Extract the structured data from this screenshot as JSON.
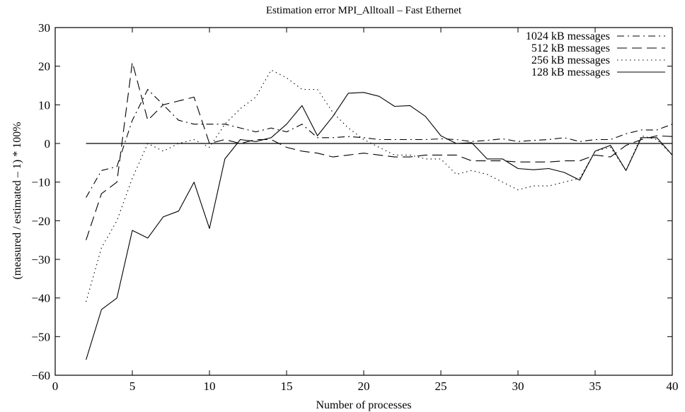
{
  "chart_data": {
    "type": "line",
    "title": "Estimation error MPI_Alltoall – Fast Ethernet",
    "xlabel": "Number of processes",
    "ylabel": "(measured / estimated – 1) * 100%",
    "xlim": [
      0,
      40
    ],
    "ylim": [
      -60,
      30
    ],
    "xticks": [
      0,
      5,
      10,
      15,
      20,
      25,
      30,
      35,
      40
    ],
    "yticks": [
      -60,
      -50,
      -40,
      -30,
      -20,
      -10,
      0,
      10,
      20,
      30
    ],
    "xtick_labels": [
      "0",
      "5",
      "10",
      "15",
      "20",
      "25",
      "30",
      "35",
      "40"
    ],
    "ytick_labels": [
      "−60",
      "−50",
      "−40",
      "−30",
      "−20",
      "−10",
      "0",
      "10",
      "20",
      "30"
    ],
    "grid": false,
    "legend_position": "top-right",
    "reference_line_y": 0,
    "series": [
      {
        "name": "1024 kB messages",
        "dash": "10,5,2,5",
        "x": [
          2,
          3,
          4,
          5,
          6,
          7,
          8,
          9,
          10,
          11,
          12,
          13,
          14,
          15,
          16,
          17,
          18,
          19,
          20,
          21,
          22,
          23,
          24,
          25,
          26,
          27,
          28,
          29,
          30,
          31,
          32,
          33,
          34,
          35,
          36,
          37,
          38,
          39,
          40
        ],
        "y": [
          -14,
          -7,
          -6,
          6,
          14,
          10,
          6,
          5,
          5,
          5,
          4,
          3,
          4,
          3,
          5,
          1.5,
          1.5,
          1.8,
          1.5,
          1,
          1,
          1,
          1,
          1.2,
          1,
          0.5,
          0.8,
          1.2,
          0.5,
          0.8,
          1,
          1.5,
          0.5,
          1,
          1,
          2.5,
          3.5,
          3.5,
          5
        ]
      },
      {
        "name": "512 kB messages",
        "dash": "14,7",
        "x": [
          2,
          3,
          4,
          5,
          6,
          7,
          8,
          9,
          10,
          11,
          12,
          13,
          14,
          15,
          16,
          17,
          18,
          19,
          20,
          21,
          22,
          23,
          24,
          25,
          26,
          27,
          28,
          29,
          30,
          31,
          32,
          33,
          34,
          35,
          36,
          37,
          38,
          39,
          40
        ],
        "y": [
          -25,
          -13,
          -10,
          21,
          6,
          10,
          11,
          12,
          0,
          1,
          0,
          1,
          1,
          -1,
          -2,
          -2.5,
          -3.5,
          -3,
          -2.5,
          -3,
          -3.5,
          -3.5,
          -3,
          -3,
          -3,
          -4.5,
          -4.5,
          -4.5,
          -4.8,
          -4.8,
          -4.8,
          -4.5,
          -4.5,
          -3,
          -3.5,
          -0.5,
          1,
          2,
          1.8
        ]
      },
      {
        "name": "256 kB messages",
        "dash": "1.5,4.5",
        "x": [
          2,
          3,
          4,
          5,
          6,
          7,
          8,
          9,
          10,
          11,
          12,
          13,
          14,
          15,
          16,
          17,
          18,
          19,
          20,
          21,
          22,
          23,
          24,
          25,
          26,
          27,
          28,
          29,
          30,
          31,
          32,
          33,
          34,
          35,
          36,
          37,
          38,
          39,
          40
        ],
        "y": [
          -41,
          -27,
          -20,
          -9,
          0,
          -2,
          0,
          1,
          -1,
          5,
          9,
          12,
          19,
          17,
          14,
          14,
          8,
          4,
          1,
          -1,
          -3,
          -3,
          -4,
          -4,
          -8,
          -7,
          -8,
          -10,
          -12,
          -11,
          -11,
          -10,
          -9,
          -2,
          -1,
          -7,
          2,
          1,
          -3
        ]
      },
      {
        "name": "128 kB messages",
        "dash": "",
        "x": [
          2,
          3,
          4,
          5,
          6,
          7,
          8,
          9,
          10,
          11,
          12,
          13,
          14,
          15,
          16,
          17,
          18,
          19,
          20,
          21,
          22,
          23,
          24,
          25,
          26,
          27,
          28,
          29,
          30,
          31,
          32,
          33,
          34,
          35,
          36,
          37,
          38,
          39,
          40
        ],
        "y": [
          -56,
          -43,
          -40,
          -22.5,
          -24.5,
          -19,
          -17.5,
          -10,
          -22,
          -4,
          1,
          0.5,
          1.5,
          5,
          9.8,
          2,
          7,
          13,
          13.2,
          12.2,
          9.6,
          9.8,
          7,
          2,
          0,
          0.2,
          -4,
          -4,
          -6.5,
          -6.8,
          -6.5,
          -7.5,
          -9.5,
          -2,
          -0.5,
          -7,
          1.5,
          1.5,
          -3
        ]
      }
    ]
  }
}
